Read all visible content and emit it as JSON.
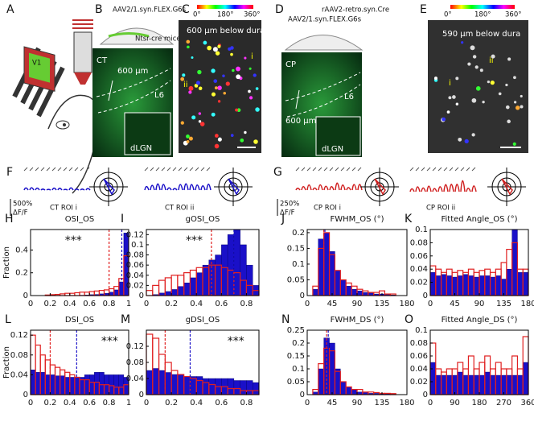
{
  "figure": {
    "panel_letters": [
      "A",
      "B",
      "C",
      "D",
      "E",
      "F",
      "G"
    ],
    "a": {
      "area": "V1"
    },
    "b": {
      "virus": "AAV2/1.syn.FLEX.G6s",
      "mouse": "Ntsr-cre mice",
      "cell_type": "CT",
      "depth": "600 µm",
      "layer": "L6",
      "target": "dLGN"
    },
    "c": {
      "colorbar_ticks": [
        "0°",
        "180°",
        "360°"
      ],
      "depth": "600 µm below dura",
      "rois": [
        "i",
        "ii"
      ]
    },
    "d": {
      "virus_retro": "rAAV2-retro.syn.Cre",
      "virus": "AAV2/1.syn.FLEX.G6s",
      "cell_type": "CP",
      "depth": "600 µm",
      "layer": "L6",
      "target": "dLGN"
    },
    "e": {
      "colorbar_ticks": [
        "0°",
        "180°",
        "360°"
      ],
      "depth": "590 µm below dura",
      "rois": [
        "i",
        "ii"
      ]
    },
    "f": {
      "scale": "500%",
      "scale_unit": "ΔF/F",
      "rois": [
        "CT ROI i",
        "CT ROI ii"
      ]
    },
    "g": {
      "scale": "250%",
      "scale_unit": "ΔF/F",
      "rois": [
        "CP ROI i",
        "CP ROI ii"
      ]
    }
  },
  "chart_data": [
    {
      "type": "histogram",
      "panel": "H",
      "title": "OSI_OS",
      "y_label": "Fraction",
      "annotation": "***",
      "bins": [
        0,
        0.05,
        0.1,
        0.15,
        0.2,
        0.25,
        0.3,
        0.35,
        0.4,
        0.45,
        0.5,
        0.55,
        0.6,
        0.65,
        0.7,
        0.75,
        0.8,
        0.85,
        0.9,
        0.95,
        1
      ],
      "series": [
        {
          "color": "#1a10c8",
          "values": [
            0,
            0,
            0,
            0,
            0,
            0,
            0,
            0,
            0,
            0.002,
            0.003,
            0.005,
            0.008,
            0.01,
            0.015,
            0.02,
            0.03,
            0.05,
            0.12,
            0.55
          ]
        },
        {
          "color": "#e02020",
          "outline": true,
          "values": [
            0,
            0,
            0,
            0.005,
            0.008,
            0.01,
            0.015,
            0.02,
            0.02,
            0.025,
            0.03,
            0.03,
            0.035,
            0.04,
            0.045,
            0.05,
            0.06,
            0.08,
            0.15,
            0.35
          ]
        }
      ],
      "reference_lines": [
        {
          "value": 0.8,
          "color": "#e02020"
        },
        {
          "value": 0.93,
          "color": "#1a10c8"
        }
      ],
      "xlim": [
        0,
        1
      ],
      "ylim": [
        0,
        0.58
      ],
      "xticks": [
        0,
        0.2,
        0.4,
        0.6,
        0.8,
        1
      ],
      "yticks": [
        0,
        0.2,
        0.4
      ]
    },
    {
      "type": "histogram",
      "panel": "I",
      "title": "gOSI_OS",
      "annotation": "***",
      "bins": [
        0,
        0.05,
        0.1,
        0.15,
        0.2,
        0.25,
        0.3,
        0.35,
        0.4,
        0.45,
        0.5,
        0.55,
        0.6,
        0.65,
        0.7,
        0.75,
        0.8,
        0.85,
        0.9
      ],
      "series": [
        {
          "color": "#1a10c8",
          "values": [
            0,
            0.002,
            0.005,
            0.008,
            0.012,
            0.018,
            0.025,
            0.035,
            0.045,
            0.06,
            0.07,
            0.08,
            0.1,
            0.12,
            0.13,
            0.1,
            0.06,
            0.02
          ]
        },
        {
          "color": "#e02020",
          "outline": true,
          "values": [
            0.01,
            0.02,
            0.03,
            0.035,
            0.04,
            0.04,
            0.045,
            0.05,
            0.055,
            0.055,
            0.06,
            0.06,
            0.055,
            0.05,
            0.045,
            0.03,
            0.02,
            0.01
          ]
        }
      ],
      "reference_lines": [
        {
          "value": 0.52,
          "color": "#e02020"
        },
        {
          "value": 0.7,
          "color": "#1a10c8"
        }
      ],
      "xlim": [
        0,
        0.9
      ],
      "ylim": [
        0,
        0.13
      ],
      "xticks": [
        0,
        0.2,
        0.4,
        0.6,
        0.8
      ],
      "yticks": [
        0,
        0.02,
        0.04,
        0.06,
        0.08,
        0.1,
        0.12
      ]
    },
    {
      "type": "histogram",
      "panel": "J",
      "title": "FWHM_OS (°)",
      "bins": [
        0,
        10,
        20,
        30,
        40,
        50,
        60,
        70,
        80,
        90,
        100,
        110,
        120,
        130,
        140,
        150,
        160,
        170,
        180
      ],
      "series": [
        {
          "color": "#1a10c8",
          "values": [
            0,
            0.02,
            0.18,
            0.2,
            0.14,
            0.08,
            0.05,
            0.03,
            0.02,
            0.015,
            0.01,
            0.008,
            0.005,
            0.005,
            0.003,
            0.002,
            0,
            0
          ]
        },
        {
          "color": "#e02020",
          "outline": true,
          "values": [
            0,
            0.03,
            0.15,
            0.2,
            0.13,
            0.08,
            0.05,
            0.04,
            0.03,
            0.02,
            0.015,
            0.01,
            0.01,
            0.015,
            0.005,
            0.005,
            0,
            0
          ]
        }
      ],
      "reference_lines": [
        {
          "value": 30,
          "color": "#e02020"
        },
        {
          "value": 32,
          "color": "#1a10c8"
        }
      ],
      "xlim": [
        0,
        180
      ],
      "ylim": [
        0,
        0.21
      ],
      "xticks": [
        0,
        45,
        90,
        135,
        180
      ],
      "yticks": [
        0,
        0.05,
        0.1,
        0.15,
        0.2
      ]
    },
    {
      "type": "histogram",
      "panel": "K",
      "title": "Fitted Angle_OS (°)",
      "bins": [
        0,
        10,
        20,
        30,
        40,
        50,
        60,
        70,
        80,
        90,
        100,
        110,
        120,
        130,
        140,
        150,
        160,
        170,
        180
      ],
      "series": [
        {
          "color": "#1a10c8",
          "values": [
            0.035,
            0.03,
            0.032,
            0.03,
            0.028,
            0.03,
            0.032,
            0.03,
            0.028,
            0.03,
            0.03,
            0.028,
            0.03,
            0.025,
            0.04,
            0.1,
            0.035,
            0.035
          ]
        },
        {
          "color": "#e02020",
          "outline": true,
          "values": [
            0.045,
            0.04,
            0.035,
            0.04,
            0.035,
            0.038,
            0.035,
            0.04,
            0.035,
            0.038,
            0.04,
            0.035,
            0.04,
            0.05,
            0.07,
            0.08,
            0.04,
            0.04
          ]
        }
      ],
      "xlim": [
        0,
        180
      ],
      "ylim": [
        0,
        0.1
      ],
      "xticks": [
        0,
        45,
        90,
        135,
        180
      ],
      "yticks": [
        0,
        0.02,
        0.04,
        0.06,
        0.08,
        0.1
      ]
    },
    {
      "type": "histogram",
      "panel": "L",
      "title": "DSI_OS",
      "y_label": "Fraction",
      "annotation": "***",
      "bins": [
        0,
        0.05,
        0.1,
        0.15,
        0.2,
        0.25,
        0.3,
        0.35,
        0.4,
        0.45,
        0.5,
        0.55,
        0.6,
        0.65,
        0.7,
        0.75,
        0.8,
        0.85,
        0.9,
        0.95,
        1
      ],
      "series": [
        {
          "color": "#1a10c8",
          "values": [
            0.05,
            0.045,
            0.045,
            0.04,
            0.04,
            0.038,
            0.038,
            0.035,
            0.035,
            0.035,
            0.035,
            0.04,
            0.04,
            0.045,
            0.045,
            0.04,
            0.04,
            0.04,
            0.04,
            0.035
          ]
        },
        {
          "color": "#e02020",
          "outline": true,
          "values": [
            0.12,
            0.1,
            0.08,
            0.07,
            0.06,
            0.055,
            0.05,
            0.045,
            0.04,
            0.035,
            0.03,
            0.03,
            0.025,
            0.025,
            0.02,
            0.02,
            0.018,
            0.015,
            0.015,
            0.02
          ]
        }
      ],
      "reference_lines": [
        {
          "value": 0.2,
          "color": "#e02020"
        },
        {
          "value": 0.47,
          "color": "#1a10c8"
        }
      ],
      "xlim": [
        0,
        1
      ],
      "ylim": [
        0,
        0.13
      ],
      "xticks": [
        0,
        0.2,
        0.4,
        0.6,
        0.8,
        1
      ],
      "yticks": [
        0,
        0.04,
        0.08,
        0.12
      ]
    },
    {
      "type": "histogram",
      "panel": "M",
      "title": "gDSI_OS",
      "annotation": "***",
      "bins": [
        0,
        0.05,
        0.1,
        0.15,
        0.2,
        0.25,
        0.3,
        0.35,
        0.4,
        0.45,
        0.5,
        0.55,
        0.6,
        0.65,
        0.7,
        0.75,
        0.8,
        0.85,
        0.9
      ],
      "series": [
        {
          "color": "#1a10c8",
          "values": [
            0.06,
            0.065,
            0.06,
            0.055,
            0.05,
            0.05,
            0.045,
            0.045,
            0.045,
            0.04,
            0.04,
            0.04,
            0.04,
            0.04,
            0.035,
            0.035,
            0.035,
            0.03
          ]
        },
        {
          "color": "#e02020",
          "outline": true,
          "values": [
            0.15,
            0.14,
            0.1,
            0.08,
            0.06,
            0.05,
            0.045,
            0.04,
            0.035,
            0.03,
            0.025,
            0.02,
            0.02,
            0.015,
            0.015,
            0.01,
            0.01,
            0.01
          ]
        }
      ],
      "reference_lines": [
        {
          "value": 0.15,
          "color": "#e02020"
        },
        {
          "value": 0.35,
          "color": "#1a10c8"
        }
      ],
      "xlim": [
        0,
        0.9
      ],
      "ylim": [
        0,
        0.16
      ],
      "xticks": [
        0,
        0.2,
        0.4,
        0.6,
        0.8
      ],
      "yticks": [
        0,
        0.04,
        0.08,
        0.12
      ]
    },
    {
      "type": "histogram",
      "panel": "N",
      "title": "FWHM_DS (°)",
      "bins": [
        0,
        10,
        20,
        30,
        40,
        50,
        60,
        70,
        80,
        90,
        100,
        110,
        120,
        130,
        140,
        150,
        160,
        170,
        180
      ],
      "series": [
        {
          "color": "#1a10c8",
          "values": [
            0,
            0.01,
            0.1,
            0.22,
            0.2,
            0.1,
            0.05,
            0.03,
            0.02,
            0.01,
            0.01,
            0.005,
            0.005,
            0.003,
            0.003,
            0.002,
            0,
            0
          ]
        },
        {
          "color": "#e02020",
          "outline": true,
          "values": [
            0,
            0.02,
            0.12,
            0.18,
            0.17,
            0.09,
            0.05,
            0.03,
            0.02,
            0.02,
            0.01,
            0.01,
            0.008,
            0.005,
            0.005,
            0.004,
            0,
            0
          ]
        }
      ],
      "reference_lines": [
        {
          "value": 35,
          "color": "#e02020"
        },
        {
          "value": 38,
          "color": "#1a10c8"
        }
      ],
      "xlim": [
        0,
        180
      ],
      "ylim": [
        0,
        0.25
      ],
      "xticks": [
        0,
        45,
        90,
        135,
        180
      ],
      "yticks": [
        0,
        0.05,
        0.1,
        0.15,
        0.2,
        0.25
      ]
    },
    {
      "type": "histogram",
      "panel": "O",
      "title": "Fitted Angle_DS (°)",
      "bins": [
        0,
        20,
        40,
        60,
        80,
        100,
        120,
        140,
        160,
        180,
        200,
        220,
        240,
        260,
        280,
        300,
        320,
        340,
        360
      ],
      "series": [
        {
          "color": "#1a10c8",
          "values": [
            0.05,
            0.03,
            0.03,
            0.03,
            0.03,
            0.035,
            0.03,
            0.03,
            0.03,
            0.03,
            0.035,
            0.03,
            0.03,
            0.03,
            0.03,
            0.03,
            0.03,
            0.05
          ]
        },
        {
          "color": "#e02020",
          "outline": true,
          "values": [
            0.08,
            0.04,
            0.035,
            0.04,
            0.04,
            0.05,
            0.04,
            0.06,
            0.04,
            0.05,
            0.06,
            0.04,
            0.05,
            0.04,
            0.04,
            0.06,
            0.04,
            0.09
          ]
        }
      ],
      "xlim": [
        0,
        360
      ],
      "ylim": [
        0,
        0.1
      ],
      "xticks": [
        0,
        90,
        180,
        270,
        360
      ],
      "yticks": [
        0,
        0.02,
        0.04,
        0.06,
        0.08,
        0.1
      ]
    }
  ]
}
